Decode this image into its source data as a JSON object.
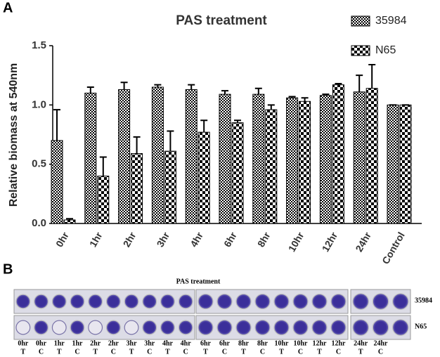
{
  "panels": [
    "A",
    "B"
  ],
  "chart_data": {
    "type": "bar",
    "title": "PAS treatment",
    "y_label": "Relative biomass at 540nm",
    "categories": [
      "0hr",
      "1hr",
      "2hr",
      "3hr",
      "4hr",
      "6hr",
      "8hr",
      "10hr",
      "12hr",
      "24hr",
      "Control"
    ],
    "series": [
      {
        "name": "35984",
        "color": "#000000",
        "values": [
          0.7,
          1.1,
          1.13,
          1.15,
          1.13,
          1.09,
          1.09,
          1.06,
          1.08,
          1.11,
          1.0
        ],
        "errors": [
          0.26,
          0.05,
          0.06,
          0.02,
          0.04,
          0.03,
          0.05,
          0.01,
          0.01,
          0.14,
          0
        ]
      },
      {
        "name": "N65",
        "color": "#000000",
        "values": [
          0.03,
          0.4,
          0.59,
          0.61,
          0.77,
          0.85,
          0.96,
          1.03,
          1.17,
          1.14,
          1.0
        ],
        "errors": [
          0.01,
          0.16,
          0.14,
          0.17,
          0.1,
          0.02,
          0.04,
          0.03,
          0.01,
          0.2,
          0
        ]
      }
    ],
    "ylim": [
      0,
      1.5
    ],
    "yticks": [
      {
        "value": 0,
        "label": "0.0"
      },
      {
        "value": 0.5,
        "label": "0.5"
      },
      {
        "value": 1,
        "label": "1.0"
      },
      {
        "value": 1.5,
        "label": "1.5"
      }
    ]
  },
  "plate": {
    "title": "PAS treatment",
    "row_labels": [
      "35984",
      "N65"
    ],
    "columns": [
      {
        "time": "0hr",
        "condition": "T"
      },
      {
        "time": "0hr",
        "condition": "C"
      },
      {
        "time": "1hr",
        "condition": "T"
      },
      {
        "time": "1hr",
        "condition": "C"
      },
      {
        "time": "2hr",
        "condition": "T"
      },
      {
        "time": "2hr",
        "condition": "C"
      },
      {
        "time": "3hr",
        "condition": "T"
      },
      {
        "time": "3hr",
        "condition": "C"
      },
      {
        "time": "4hr",
        "condition": "T"
      },
      {
        "time": "4hr",
        "condition": "C"
      },
      {
        "time": "6hr",
        "condition": "T"
      },
      {
        "time": "6hr",
        "condition": "C"
      },
      {
        "time": "8hr",
        "condition": "T"
      },
      {
        "time": "8hr",
        "condition": "C"
      },
      {
        "time": "10hr",
        "condition": "T"
      },
      {
        "time": "10hr",
        "condition": "C"
      },
      {
        "time": "12hr",
        "condition": "T"
      },
      {
        "time": "12hr",
        "condition": "C"
      },
      {
        "time": "24hr",
        "condition": "T"
      },
      {
        "time": "24hr",
        "condition": "C"
      }
    ]
  }
}
